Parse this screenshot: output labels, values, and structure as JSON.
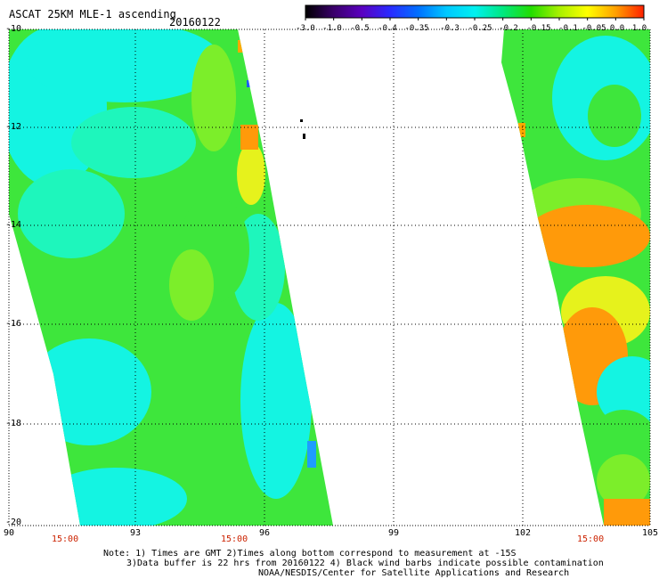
{
  "title": "ASCAT 25KM MLE-1 ascending",
  "date": "20160122",
  "colorbar": {
    "labels": [
      "-3.0",
      "-1.0",
      "-0.5",
      "-0.4",
      "-0.35",
      "-0.3",
      "-0.25",
      "-0.2",
      "-0.15",
      "-0.1",
      "-0.05",
      "0.0",
      "1.0"
    ],
    "colors": [
      "#000000",
      "#3a006a",
      "#5a00c0",
      "#2a2aff",
      "#0070ff",
      "#00c8ff",
      "#00f0f0",
      "#00e880",
      "#22dd00",
      "#a8f000",
      "#ffff00",
      "#ffa000",
      "#ff2000"
    ]
  },
  "lat_labels": [
    "-10",
    "-12",
    "-14",
    "-16",
    "-18",
    "-20"
  ],
  "lon_labels": [
    "90",
    "93",
    "96",
    "99",
    "102",
    "105"
  ],
  "time_labels": [
    "15:00",
    "15:00",
    "15:00"
  ],
  "notes": {
    "line1": "Note: 1) Times are GMT 2)Times along bottom correspond to measurement at -15S",
    "line2": "3)Data buffer is 22 hrs from 20160122 4) Black wind barbs indicate possible contamination",
    "line3": "NOAA/NESDIS/Center for Satellite Applications and Research"
  },
  "map": {
    "lon_range": [
      90,
      105
    ],
    "lat_range": [
      -20,
      -10
    ],
    "palette": {
      "cyan": "#14f4e2",
      "aqua": "#1ef6bc",
      "green": "#3ee63c",
      "lime": "#7cee2a",
      "yellow": "#e6f21c",
      "orange": "#ff9a0a",
      "blue": "#1e5cff"
    }
  }
}
